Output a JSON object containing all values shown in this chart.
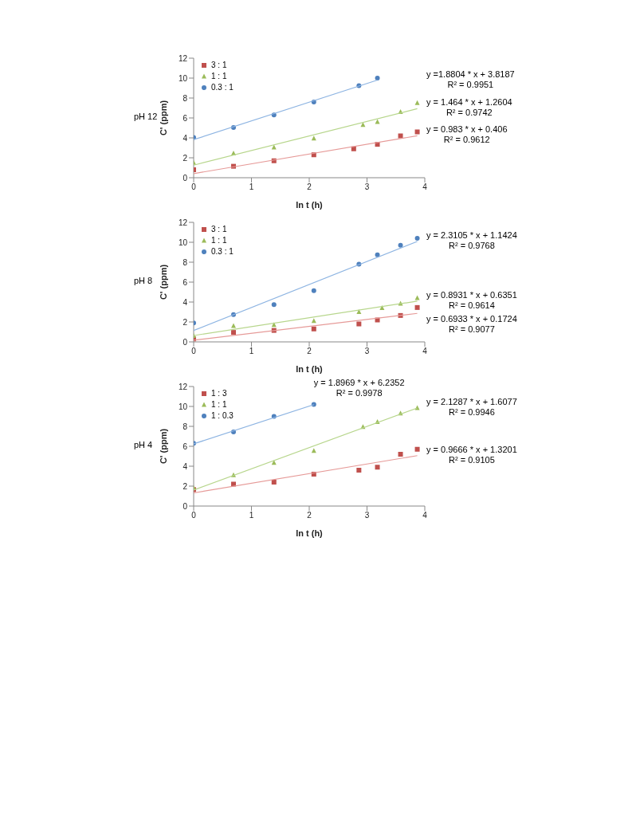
{
  "chart_data": [
    {
      "type": "scatter",
      "title": "pH 12",
      "xlabel": "ln t (h)",
      "ylabel": "C' (ppm)",
      "xlim": [
        0,
        4
      ],
      "xticks": [
        0,
        1,
        2,
        3,
        4
      ],
      "ylim": [
        0,
        12
      ],
      "yticks": [
        0,
        2,
        4,
        6,
        8,
        10,
        12
      ],
      "grid": false,
      "legend": "top left",
      "annotations": [
        "y = 0.983 * x + 0.406",
        "R² = 0.9612",
        "y = 1.464 * x + 1.2604",
        "R² = 0.9742",
        "y =1.8804 * x + 3.8187",
        "R² = 0.9951"
      ],
      "series": [
        {
          "name": "3 : 1",
          "color": "#c0504d",
          "marker": "square",
          "x": [
            0,
            0.69,
            1.39,
            2.08,
            2.77,
            3.18,
            3.58,
            3.87
          ],
          "values": [
            0.8,
            1.15,
            1.7,
            2.3,
            2.9,
            3.35,
            4.2,
            4.6
          ]
        },
        {
          "name": "1 : 1",
          "color": "#9bbb59",
          "marker": "triangle",
          "x": [
            0,
            0.69,
            1.39,
            2.08,
            2.93,
            3.18,
            3.58,
            3.87
          ],
          "values": [
            1.5,
            2.45,
            3.05,
            3.95,
            5.3,
            5.6,
            6.6,
            7.5
          ]
        },
        {
          "name": "0.3 : 1",
          "color": "#4f81bd",
          "marker": "circle",
          "x": [
            0,
            0.69,
            1.39,
            2.08,
            2.86,
            3.18
          ],
          "values": [
            4.05,
            5.05,
            6.3,
            7.6,
            9.25,
            10.0
          ]
        },
        {
          "type": "line",
          "color": "#e69a98",
          "x": [
            0,
            3.87
          ],
          "values": [
            0.41,
            4.21
          ]
        },
        {
          "type": "line",
          "color": "#b7d68c",
          "x": [
            0,
            3.87
          ],
          "values": [
            1.26,
            6.93
          ]
        },
        {
          "type": "line",
          "color": "#8db4e2",
          "x": [
            0,
            3.18
          ],
          "values": [
            3.82,
            9.8
          ]
        }
      ]
    },
    {
      "type": "scatter",
      "title": "pH 8",
      "xlabel": "ln t (h)",
      "ylabel": "C' (ppm)",
      "xlim": [
        0,
        4
      ],
      "xticks": [
        0,
        1,
        2,
        3,
        4
      ],
      "ylim": [
        0,
        12
      ],
      "yticks": [
        0,
        2,
        4,
        6,
        8,
        10,
        12
      ],
      "grid": false,
      "legend": "top left",
      "annotations": [
        "y = 0.6933 * x + 0.1724",
        "R² = 0.9077",
        "y = 0.8931 * x + 0.6351",
        "R² = 0.9614",
        "y = 2.3105 * x + 1.1424",
        "R² = 0.9768"
      ],
      "series": [
        {
          "name": "3 : 1",
          "color": "#c0504d",
          "marker": "square",
          "x": [
            0,
            0.69,
            1.39,
            2.08,
            2.86,
            3.18,
            3.58,
            3.87
          ],
          "values": [
            0.3,
            0.95,
            1.15,
            1.3,
            1.8,
            2.2,
            2.65,
            3.45
          ]
        },
        {
          "name": "1 : 1",
          "color": "#9bbb59",
          "marker": "triangle",
          "x": [
            0,
            0.69,
            1.39,
            2.08,
            2.86,
            3.26,
            3.58,
            3.87
          ],
          "values": [
            0.6,
            1.6,
            1.7,
            2.1,
            3.0,
            3.4,
            3.85,
            4.4
          ]
        },
        {
          "name": "0.3 : 1",
          "color": "#4f81bd",
          "marker": "circle",
          "x": [
            0,
            0.69,
            1.39,
            2.08,
            2.86,
            3.18,
            3.58,
            3.87
          ],
          "values": [
            1.9,
            2.75,
            3.75,
            5.15,
            7.8,
            8.75,
            9.7,
            10.4
          ]
        },
        {
          "type": "line",
          "color": "#e69a98",
          "x": [
            0,
            3.87
          ],
          "values": [
            0.17,
            2.86
          ]
        },
        {
          "type": "line",
          "color": "#b7d68c",
          "x": [
            0,
            3.87
          ],
          "values": [
            0.64,
            4.09
          ]
        },
        {
          "type": "line",
          "color": "#8db4e2",
          "x": [
            0,
            3.87
          ],
          "values": [
            1.14,
            10.08
          ]
        }
      ]
    },
    {
      "type": "scatter",
      "title": "pH 4",
      "xlabel": "ln t (h)",
      "ylabel": "C' (ppm)",
      "xlim": [
        0,
        4
      ],
      "xticks": [
        0,
        1,
        2,
        3,
        4
      ],
      "ylim": [
        0,
        12
      ],
      "yticks": [
        0,
        2,
        4,
        6,
        8,
        10,
        12
      ],
      "grid": false,
      "legend": "top left",
      "annotations": [
        "y = 0.9666 * x + 1.3201",
        "R² = 0.9105",
        "y = 2.1287 * x + 1.6077",
        "R² = 0.9946",
        "y = 1.8969 * x + 6.2352",
        "R² = 0.9978"
      ],
      "series": [
        {
          "name": "1 : 3",
          "color": "#c0504d",
          "marker": "square",
          "x": [
            0,
            0.69,
            1.39,
            2.08,
            2.86,
            3.18,
            3.58,
            3.87
          ],
          "values": [
            1.65,
            2.2,
            2.4,
            3.2,
            3.6,
            3.9,
            5.2,
            5.7
          ]
        },
        {
          "name": "1 : 1",
          "color": "#9bbb59",
          "marker": "triangle",
          "x": [
            0,
            0.69,
            1.39,
            2.08,
            2.93,
            3.18,
            3.58,
            3.87
          ],
          "values": [
            1.8,
            3.1,
            4.35,
            5.55,
            7.95,
            8.45,
            9.3,
            9.85
          ]
        },
        {
          "name": "1 : 0.3",
          "color": "#4f81bd",
          "marker": "circle",
          "x": [
            0,
            0.69,
            1.39,
            2.08
          ],
          "values": [
            6.3,
            7.45,
            9.0,
            10.2
          ]
        },
        {
          "type": "line",
          "color": "#e69a98",
          "x": [
            0,
            3.87
          ],
          "values": [
            1.32,
            5.06
          ]
        },
        {
          "type": "line",
          "color": "#b7d68c",
          "x": [
            0,
            3.87
          ],
          "values": [
            1.61,
            9.84
          ]
        },
        {
          "type": "line",
          "color": "#8db4e2",
          "x": [
            0,
            2.08
          ],
          "values": [
            6.24,
            10.18
          ]
        }
      ]
    }
  ]
}
